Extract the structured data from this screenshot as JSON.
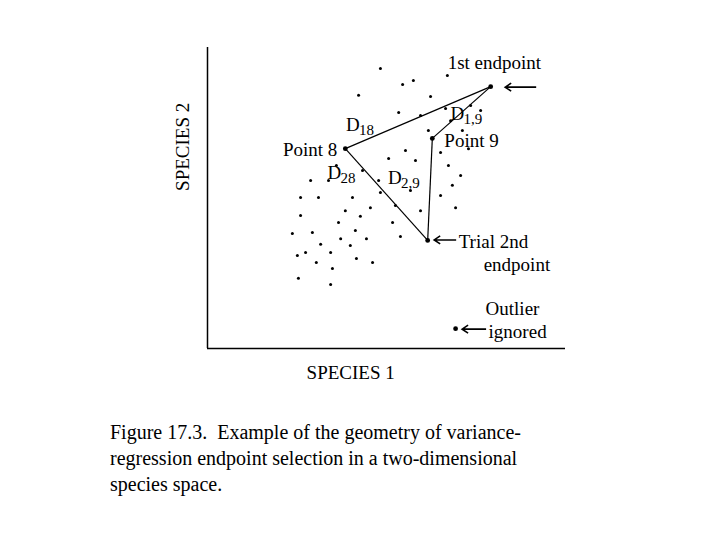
{
  "chart_data": {
    "type": "scatter",
    "x_label": "SPECIES 1",
    "y_label": "SPECIES 2",
    "xlim": [
      0,
      100
    ],
    "ylim": [
      0,
      100
    ],
    "tick_labels": false,
    "color": "#000000",
    "points": {
      "x": [
        48.3,
        57.5,
        67.0,
        62.3,
        73.5,
        53.4,
        59.5,
        67.9,
        61.7,
        71.2,
        65.1,
        55.3,
        50.6,
        43.3,
        47.8,
        56.7,
        67.3,
        70.7,
        68.4,
        65.1,
        59.5,
        69.3,
        52.5,
        48.3,
        45.5,
        42.7,
        40.5,
        38.5,
        36.6,
        41.3,
        37.2,
        39.9,
        34.4,
        31.6,
        29.3,
        26.0,
        31.0,
        33.8,
        36.0,
        28.8,
        26.0,
        23.7,
        27.4,
        25.4,
        30.4,
        34.9,
        41.6,
        46.1,
        44.4,
        53.9,
        51.7,
        42.2,
        54.5,
        76.3,
        66.5,
        34.4,
        25.1,
        58.1,
        72.9
      ],
      "y": [
        93.0,
        89.0,
        90.7,
        83.7,
        80.7,
        78.4,
        77.4,
        75.7,
        72.4,
        72.4,
        65.1,
        65.8,
        63.1,
        59.1,
        55.8,
        52.5,
        60.8,
        57.5,
        54.2,
        50.8,
        45.8,
        46.8,
        47.5,
        51.8,
        46.8,
        43.9,
        50.2,
        45.8,
        41.9,
        39.2,
        36.5,
        34.2,
        31.9,
        34.6,
        38.5,
        44.2,
        50.2,
        55.8,
        60.8,
        55.8,
        50.2,
        38.2,
        31.9,
        23.3,
        28.6,
        26.6,
        29.9,
        28.6,
        36.5,
        37.2,
        41.9,
        84.1,
        87.7,
        79.1,
        79.7,
        21.3,
        30.9,
        62.5,
        66.4
      ]
    },
    "highlighted": [
      {
        "x": 79.1,
        "y": 87.0,
        "label": [
          "1st endpoint"
        ]
      },
      {
        "x": 38.5,
        "y": 66.4,
        "label": [
          "Point 8"
        ]
      },
      {
        "x": 62.8,
        "y": 69.8,
        "label": [
          "Point 9"
        ]
      },
      {
        "x": 61.5,
        "y": 35.9,
        "label": [
          "Trial 2nd",
          "endpoint"
        ]
      },
      {
        "x": 69.3,
        "y": 6.6,
        "label": [
          "Outlier",
          "ignored"
        ]
      }
    ],
    "segments": [
      {
        "from": 0,
        "to": 1,
        "label": {
          "text": "D",
          "subscript": "18"
        }
      },
      {
        "from": 0,
        "to": 2,
        "label": {
          "text": "D",
          "subscript": "1,9"
        }
      },
      {
        "from": 1,
        "to": 3,
        "label": {
          "text": "D",
          "subscript": "28"
        }
      },
      {
        "from": 2,
        "to": 3,
        "label": {
          "text": "D",
          "subscript": "2,9"
        }
      }
    ],
    "caption": [
      "Figure 17.3.  Example of the geometry of variance-",
      "regression endpoint selection in a two-dimensional",
      "species space."
    ]
  }
}
